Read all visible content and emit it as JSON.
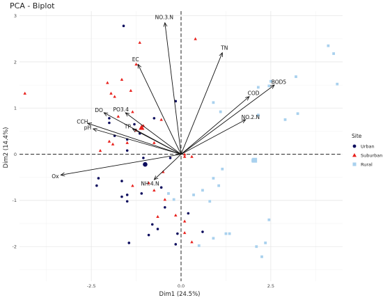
{
  "chart_data": {
    "type": "scatter",
    "title": "PCA - Biplot",
    "xlabel": "Dim1 (24.5%)",
    "ylabel": "Dim2 (14.4%)",
    "xlim": [
      -4.5,
      4.5
    ],
    "ylim": [
      -2.75,
      3.1
    ],
    "xticks": [
      -2.5,
      0.0,
      2.5
    ],
    "yticks": [
      -2,
      -1,
      0,
      1,
      2,
      3
    ],
    "legend": {
      "title": "Site",
      "position": "right",
      "entries": [
        {
          "label": "Urban",
          "shape": "circle",
          "color": "#0d0d5e"
        },
        {
          "label": "Suburban",
          "shape": "triangle",
          "color": "#e8201c"
        },
        {
          "label": "Rural",
          "shape": "square",
          "color": "#a9d1ee"
        }
      ]
    },
    "series": [
      {
        "name": "Urban",
        "color": "#0d0d5e",
        "shape": "circle",
        "points": [
          [
            -1.6,
            2.78
          ],
          [
            -2.0,
            0.68
          ],
          [
            -1.5,
            0.08
          ],
          [
            -1.5,
            0.32
          ],
          [
            -1.15,
            0.45
          ],
          [
            -0.75,
            0.78
          ],
          [
            -0.15,
            1.15
          ],
          [
            -1.3,
            0.65
          ],
          [
            -1.85,
            0.4
          ],
          [
            -1.65,
            -0.58
          ],
          [
            -2.3,
            -0.52
          ],
          [
            -2.35,
            -0.68
          ],
          [
            -1.5,
            -0.88
          ],
          [
            -1.1,
            -0.85
          ],
          [
            -1.5,
            -1.02
          ],
          [
            -0.8,
            -1.52
          ],
          [
            -0.65,
            -1.62
          ],
          [
            -0.9,
            -1.75
          ],
          [
            -1.45,
            -1.92
          ],
          [
            -0.55,
            -0.72
          ],
          [
            -1.65,
            -0.92
          ],
          [
            -0.1,
            -1.72
          ],
          [
            -1.05,
            -0.08
          ],
          [
            -0.15,
            -1.95
          ],
          [
            0.6,
            -1.68
          ],
          [
            0.2,
            -1.28
          ],
          [
            -0.45,
            -1.15
          ],
          [
            -0.3,
            -0.08
          ],
          [
            -2.0,
            0.78
          ]
        ]
      },
      {
        "name": "Suburban",
        "color": "#e8201c",
        "shape": "triangle",
        "points": [
          [
            -4.35,
            1.32
          ],
          [
            -1.15,
            2.42
          ],
          [
            -1.25,
            1.95
          ],
          [
            -2.05,
            1.55
          ],
          [
            -1.65,
            1.62
          ],
          [
            -1.95,
            1.32
          ],
          [
            -1.4,
            1.38
          ],
          [
            -1.85,
            1.25
          ],
          [
            -1.35,
            0.92
          ],
          [
            -1.75,
            0.82
          ],
          [
            -1.25,
            0.52
          ],
          [
            -0.55,
            0.75
          ],
          [
            0.4,
            2.5
          ],
          [
            -1.05,
            0.62
          ],
          [
            -2.0,
            0.28
          ],
          [
            -1.5,
            0.25
          ],
          [
            -1.9,
            0.22
          ],
          [
            -2.25,
            0.08
          ],
          [
            -0.75,
            0.25
          ],
          [
            -0.5,
            -0.38
          ],
          [
            -0.9,
            -0.62
          ],
          [
            -0.75,
            -0.78
          ],
          [
            -1.35,
            -0.68
          ],
          [
            -0.45,
            -0.98
          ],
          [
            -0.65,
            -1.35
          ],
          [
            0.1,
            -1.45
          ],
          [
            0.3,
            -1.9
          ],
          [
            0.1,
            -1.7
          ],
          [
            -0.15,
            -1.32
          ],
          [
            0.1,
            0.0
          ],
          [
            0.3,
            -0.05
          ],
          [
            0.1,
            -0.05
          ]
        ]
      },
      {
        "name": "Rural",
        "color": "#a9d1ee",
        "shape": "square",
        "points": [
          [
            4.1,
            2.35
          ],
          [
            4.25,
            2.18
          ],
          [
            4.35,
            1.52
          ],
          [
            3.2,
            1.68
          ],
          [
            3.25,
            0.88
          ],
          [
            2.5,
            1.58
          ],
          [
            2.45,
            1.48
          ],
          [
            2.15,
            1.45
          ],
          [
            2.15,
            0.85
          ],
          [
            1.1,
            0.92
          ],
          [
            0.9,
            1.12
          ],
          [
            2.9,
            0.75
          ],
          [
            1.15,
            -0.32
          ],
          [
            0.9,
            -0.52
          ],
          [
            1.05,
            -0.68
          ],
          [
            0.6,
            -0.78
          ],
          [
            0.35,
            -0.88
          ],
          [
            -0.35,
            -0.85
          ],
          [
            -0.2,
            -0.98
          ],
          [
            2.0,
            -0.15
          ],
          [
            0.8,
            -1.02
          ],
          [
            2.45,
            -1.42
          ],
          [
            1.25,
            -1.72
          ],
          [
            1.35,
            -1.72
          ],
          [
            0.9,
            -1.82
          ],
          [
            0.5,
            -1.98
          ],
          [
            2.35,
            -1.92
          ],
          [
            2.1,
            -2.0
          ],
          [
            2.25,
            -2.22
          ],
          [
            2.0,
            -0.12
          ]
        ]
      }
    ],
    "centroids": [
      {
        "name": "Urban",
        "x": -1.0,
        "y": -0.22
      },
      {
        "name": "Suburban",
        "x": -1.1,
        "y": 0.58
      },
      {
        "name": "Rural",
        "x": 2.05,
        "y": -0.13
      }
    ],
    "loadings": [
      {
        "label": "NO.3.N",
        "x": -0.45,
        "y": 2.85
      },
      {
        "label": "TN",
        "x": 1.15,
        "y": 2.2
      },
      {
        "label": "EC",
        "x": -1.2,
        "y": 1.95
      },
      {
        "label": "COD",
        "x": 1.9,
        "y": 1.25
      },
      {
        "label": "BOD5",
        "x": 2.6,
        "y": 1.5
      },
      {
        "label": "NO.2.N",
        "x": 1.8,
        "y": 0.75
      },
      {
        "label": "DO",
        "x": -2.15,
        "y": 0.9
      },
      {
        "label": "PO3.4",
        "x": -1.55,
        "y": 0.9
      },
      {
        "label": "TP",
        "x": -1.35,
        "y": 0.55
      },
      {
        "label": "CCH",
        "x": -2.6,
        "y": 0.67
      },
      {
        "label": "pH",
        "x": -2.45,
        "y": 0.55
      },
      {
        "label": "Ox",
        "x": -3.35,
        "y": -0.45
      },
      {
        "label": "NH.4.N",
        "x": -0.75,
        "y": -0.55
      }
    ],
    "grid": true
  }
}
